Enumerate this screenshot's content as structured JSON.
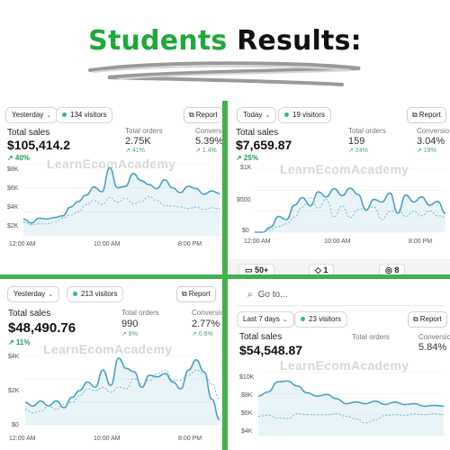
{
  "header": {
    "title_green": "Students",
    "title_black": "Results:"
  },
  "panels": [
    {
      "period": "Yesterday",
      "visitors": "134 visitors",
      "report": "Report",
      "total_label": "Total sales",
      "total_value": "$105,414.2",
      "change": "↗ 40%",
      "orders_label": "Total orders",
      "orders_value": "2.75K",
      "orders_change": "↗ 41%",
      "conv_label": "Conversio",
      "conv_value": "5.39%",
      "conv_change": "↗ 1.4%",
      "watermark": "LearnEcomAcademy",
      "y_ticks": [
        "$8K",
        "$6K",
        "$4K",
        "$2K"
      ],
      "x_ticks": [
        "12:00 AM",
        "10:00 AM",
        "8:00 PM"
      ]
    },
    {
      "period": "Today",
      "visitors": "19 visitors",
      "report": "Report",
      "total_label": "Total sales",
      "total_value": "$7,659.87",
      "change": "↗ 25%",
      "orders_label": "Total orders",
      "orders_value": "159",
      "orders_change": "↗ 24%",
      "conv_label": "Conversio",
      "conv_value": "3.04%",
      "conv_change": "↗ 18%",
      "watermark": "LearnEcomAcademy",
      "y_ticks": [
        "$1K",
        "$500",
        "$0"
      ],
      "x_ticks": [
        "12:00 AM",
        "10:00 AM",
        "8:00 PM"
      ],
      "strip_chips": [
        "50+",
        "1",
        "8"
      ]
    },
    {
      "period": "Yesterday",
      "visitors": "213 visitors",
      "report": "Report",
      "total_label": "Total sales",
      "total_value": "$48,490.76",
      "change": "↗ 11%",
      "orders_label": "Total orders",
      "orders_value": "990",
      "orders_change": "↗ 8%",
      "conv_label": "Conversio",
      "conv_value": "2.77%",
      "conv_change": "↗ 0.6%",
      "watermark": "LearnEcomAcademy",
      "y_ticks": [
        "$4K",
        "$2K",
        "$0"
      ],
      "x_ticks": [
        "12:00 AM",
        "10:00 AM",
        "8:00 PM"
      ]
    },
    {
      "search_placeholder": "Go to...",
      "period": "Last 7 days",
      "visitors": "23 visitors",
      "report": "Report",
      "total_label": "Total sales",
      "total_value": "$54,548.87",
      "orders_label": "Total orders",
      "conv_label": "Conversion",
      "conv_value": "5.84%",
      "watermark": "LearnEcomAcademy",
      "y_ticks": [
        "$10K",
        "$8K",
        "$6K",
        "$4K"
      ]
    }
  ],
  "colors": {
    "accent_green": "#1fa83a",
    "divider_green": "#43b14b",
    "line": "#4aa3c4",
    "positive": "#1f9d55"
  },
  "icons": {
    "report": "report-icon",
    "search": "search-icon",
    "dropdown": "chevron-down-icon",
    "trend": "trend-up-icon"
  },
  "chart_data": [
    {
      "type": "line",
      "x_labels": [
        "12:00 AM",
        "10:00 AM",
        "8:00 PM"
      ],
      "ylim": [
        0,
        9000
      ],
      "series": [
        {
          "values": [
            2100,
            1600,
            2200,
            2100,
            2300,
            2500,
            3600,
            4300,
            5100,
            6100,
            5500,
            8500,
            6000,
            6200,
            7800,
            6900,
            6400,
            5900,
            7000,
            6000,
            5400,
            6200,
            5900,
            5200,
            5600,
            5300
          ]
        },
        {
          "values": [
            1700,
            1400,
            1500,
            1500,
            1700,
            2200,
            2600,
            3000,
            3900,
            4400,
            3900,
            4800,
            4200,
            4700,
            4000,
            4300,
            4900,
            4400,
            3800,
            3700,
            3600,
            3400,
            3600,
            3300,
            3500,
            3400
          ]
        }
      ]
    },
    {
      "type": "line",
      "x_labels": [
        "12:00 AM",
        "10:00 AM",
        "8:00 PM"
      ],
      "ylim": [
        0,
        1000
      ],
      "series": [
        {
          "values": [
            0,
            0,
            80,
            250,
            200,
            430,
            550,
            420,
            640,
            560,
            690,
            580,
            700,
            600,
            350,
            520,
            480,
            620,
            300,
            590,
            480,
            560,
            430,
            490,
            300
          ]
        },
        {
          "values": [
            0,
            0,
            40,
            90,
            130,
            240,
            400,
            550,
            380,
            520,
            240,
            420,
            230,
            360,
            380,
            400,
            200,
            330,
            360,
            250,
            330,
            260,
            340,
            260,
            240
          ]
        }
      ]
    },
    {
      "type": "line",
      "x_labels": [
        "12:00 AM",
        "10:00 AM",
        "8:00 PM"
      ],
      "ylim": [
        0,
        4000
      ],
      "series": [
        {
          "values": [
            1300,
            1100,
            1400,
            1100,
            1400,
            1000,
            1600,
            2000,
            2500,
            2200,
            3200,
            2300,
            3900,
            3300,
            3100,
            2200,
            2900,
            2800,
            3000,
            2500,
            2100,
            3200,
            3800,
            3100,
            1500,
            300
          ]
        },
        {
          "values": [
            900,
            700,
            800,
            1100,
            900,
            1200,
            1300,
            1700,
            2100,
            2000,
            2200,
            1900,
            2200,
            2100,
            2700,
            2400,
            2600,
            3000,
            3200,
            2600,
            2600,
            2900,
            3200,
            3000,
            2400,
            1500
          ]
        }
      ]
    },
    {
      "type": "line",
      "ylim": [
        3500,
        11000
      ],
      "series": [
        {
          "values": [
            8200,
            8700,
            9900,
            10000,
            9400,
            8600,
            8200,
            8400,
            7900,
            7300,
            7500,
            7300,
            7600,
            7200,
            7500,
            7200,
            7300,
            7000,
            7100,
            7000
          ]
        },
        {
          "values": [
            5800,
            5900,
            5600,
            5500,
            6100,
            6000,
            6000,
            6000,
            6100,
            5800,
            5500,
            5000,
            5400,
            5900,
            6000,
            5900,
            6100,
            6000,
            6100,
            6000
          ]
        }
      ]
    }
  ]
}
